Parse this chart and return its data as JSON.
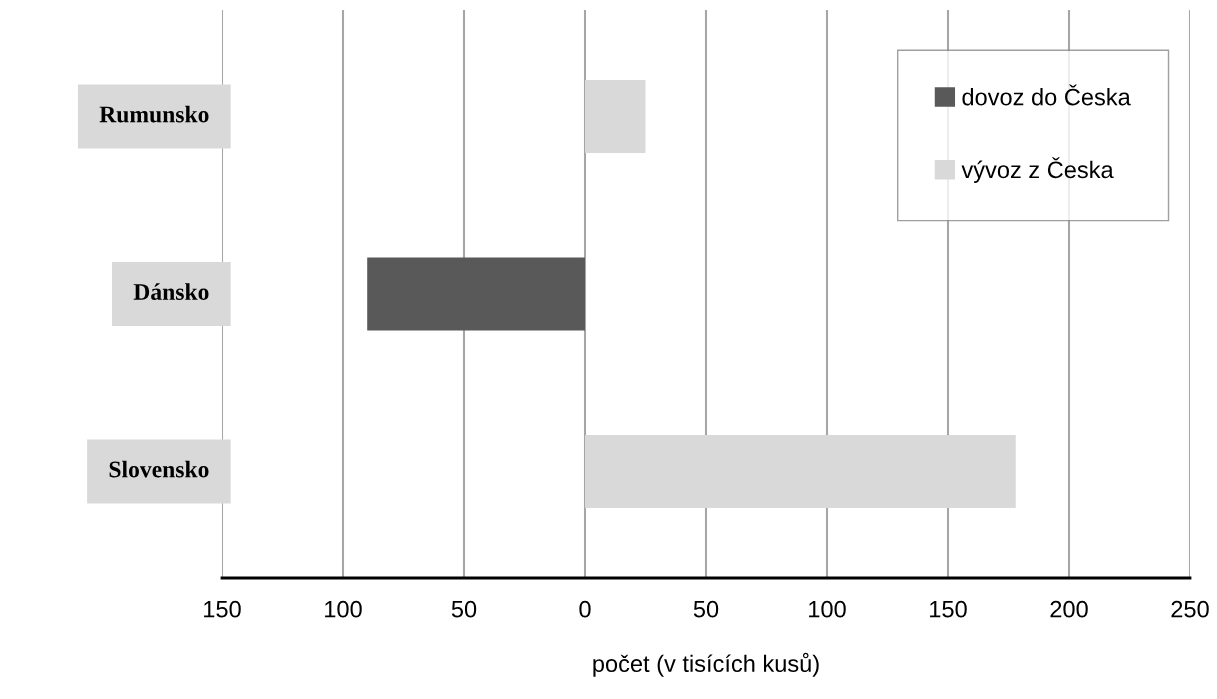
{
  "chart_data": {
    "type": "bar",
    "orientation": "horizontal",
    "categories": [
      "Rumunsko",
      "Dánsko",
      "Slovensko"
    ],
    "series": [
      {
        "name": "dovoz do Česka",
        "color": "#595959",
        "values": [
          null,
          -90,
          null
        ]
      },
      {
        "name": "vývoz z Česka",
        "color": "#d9d9d9",
        "values": [
          25,
          null,
          178
        ]
      }
    ],
    "xlim": [
      -150,
      250
    ],
    "xticks": [
      {
        "value": -150,
        "label": "150"
      },
      {
        "value": -100,
        "label": "100"
      },
      {
        "value": -50,
        "label": "50"
      },
      0,
      50,
      100,
      150,
      200,
      250
    ],
    "xlabel": "počet (v tisících kusů)",
    "grid": "x",
    "legend": "top right"
  }
}
